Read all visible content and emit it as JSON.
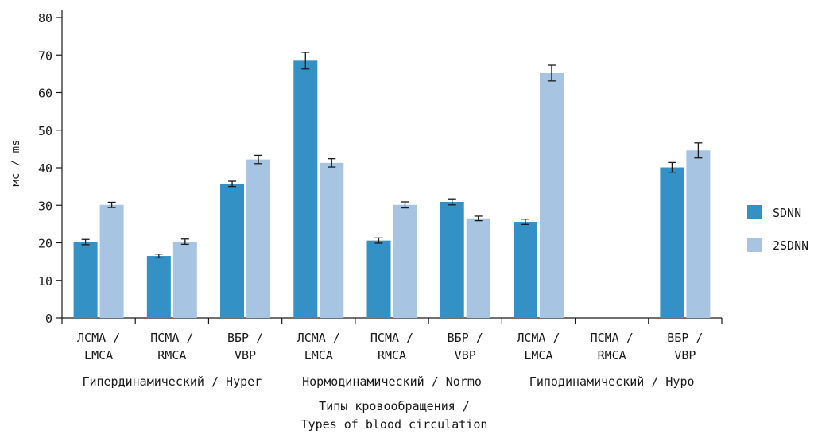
{
  "chart_data": {
    "type": "bar",
    "ylabel": "мс / ms",
    "ylim": [
      0,
      80
    ],
    "yticks": [
      0,
      10,
      20,
      30,
      40,
      50,
      60,
      70,
      80
    ],
    "categories": [
      {
        "line1": "ЛСМА /",
        "line2": "LMCA"
      },
      {
        "line1": "ПСМА /",
        "line2": "RMCA"
      },
      {
        "line1": "ВБР /",
        "line2": "VBP"
      },
      {
        "line1": "ЛСМА /",
        "line2": "LMCA"
      },
      {
        "line1": "ПСМА /",
        "line2": "RMCA"
      },
      {
        "line1": "ВБР /",
        "line2": "VBP"
      },
      {
        "line1": "ЛСМА /",
        "line2": "LMCA"
      },
      {
        "line1": "ПСМА /",
        "line2": "RMCA"
      },
      {
        "line1": "ВБР /",
        "line2": "VBP"
      }
    ],
    "groups": [
      {
        "label": "Гипердинамический / Hyper",
        "span": [
          0,
          2
        ]
      },
      {
        "label": "Нормодинамический / Normo",
        "span": [
          3,
          5
        ]
      },
      {
        "label": "Гиподинамический / Hypo",
        "span": [
          6,
          8
        ]
      }
    ],
    "xlabel_line1": "Типы кровообращения /",
    "xlabel_line2": "Types of blood circulation",
    "series": [
      {
        "name": "SDNN",
        "color": "#3391c6",
        "values": [
          20.2,
          16.5,
          35.7,
          68.5,
          20.6,
          30.9,
          25.6,
          null,
          40.1
        ],
        "errors": [
          0.7,
          0.5,
          0.7,
          2.2,
          0.7,
          0.8,
          0.7,
          null,
          1.3
        ]
      },
      {
        "name": "2SDNN",
        "color": "#a7c4e2",
        "values": [
          30.1,
          20.3,
          42.2,
          41.3,
          30.1,
          26.5,
          65.2,
          null,
          44.6
        ],
        "errors": [
          0.7,
          0.7,
          1.1,
          1.1,
          0.8,
          0.6,
          2.1,
          null,
          2.0
        ]
      }
    ],
    "legend_position": "right",
    "grid": false
  }
}
